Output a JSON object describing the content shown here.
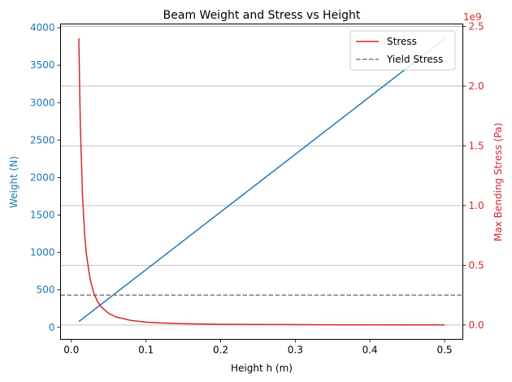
{
  "chart_data": {
    "type": "line",
    "title": "Beam Weight and Stress vs Height",
    "xlabel": "Height h (m)",
    "ylabel_left": "Weight (N)",
    "ylabel_right": "Max Bending Stress (Pa)",
    "right_axis_offset_label": "1e9",
    "xlim": [
      -0.0145,
      0.5245
    ],
    "ylim_left": [
      -160,
      4050
    ],
    "ylim_right": [
      -120000000.0,
      2520000000.0
    ],
    "x_ticks": [
      0.0,
      0.1,
      0.2,
      0.3,
      0.4,
      0.5
    ],
    "x_tick_labels": [
      "0.0",
      "0.1",
      "0.2",
      "0.3",
      "0.4",
      "0.5"
    ],
    "y_left_ticks": [
      0,
      500,
      1000,
      1500,
      2000,
      2500,
      3000,
      3500,
      4000
    ],
    "y_left_tick_labels": [
      "0",
      "500",
      "1000",
      "1500",
      "2000",
      "2500",
      "3000",
      "3500",
      "4000"
    ],
    "y_right_ticks": [
      0.0,
      500000000.0,
      1000000000.0,
      1500000000.0,
      2000000000.0,
      2500000000.0
    ],
    "y_right_tick_labels": [
      "0.0",
      "0.5",
      "1.0",
      "1.5",
      "2.0",
      "2.5"
    ],
    "grid": "horizontal lines at right-axis ticks",
    "legend": {
      "placement": "top-right",
      "entries": [
        "Stress",
        "Yield Stress"
      ]
    },
    "series": [
      {
        "name": "Weight",
        "axis": "left",
        "color": "#1f77b4",
        "linestyle": "solid",
        "x": [
          0.01,
          0.5
        ],
        "y": [
          77,
          3850
        ]
      },
      {
        "name": "Stress",
        "axis": "right",
        "color": "#d62728",
        "linestyle": "solid",
        "x": [
          0.01,
          0.012,
          0.015,
          0.018,
          0.02,
          0.025,
          0.03,
          0.035,
          0.04,
          0.05,
          0.06,
          0.08,
          0.1,
          0.12,
          0.15,
          0.2,
          0.25,
          0.3,
          0.35,
          0.4,
          0.45,
          0.5
        ],
        "y": [
          2400000000.0,
          1670000000.0,
          1070000000.0,
          740000000.0,
          600000000.0,
          386000000.0,
          268000000.0,
          197000000.0,
          151000000.0,
          97000000.0,
          67000000.0,
          38000000.0,
          24000000.0,
          17000000.0,
          11000000.0,
          6000000.0,
          4000000.0,
          3000000.0,
          2000000.0,
          1500000.0,
          1200000.0,
          1000000.0
        ]
      },
      {
        "name": "Yield Stress",
        "axis": "right",
        "color": "#7f7f7f",
        "linestyle": "dashed",
        "x": [
          -0.0145,
          0.5245
        ],
        "y": [
          250000000.0,
          250000000.0
        ]
      }
    ],
    "colors": {
      "left_axis": "#1f77b4",
      "right_axis": "#d62728",
      "grid": "#b0b0b0"
    }
  }
}
